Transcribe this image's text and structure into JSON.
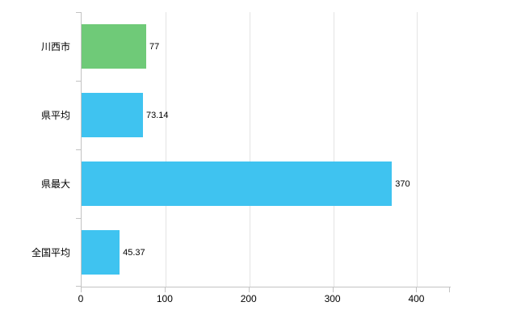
{
  "chart_data": {
    "type": "bar",
    "orientation": "horizontal",
    "title": "",
    "categories": [
      "川西市",
      "県平均",
      "県最大",
      "全国平均"
    ],
    "values": [
      77,
      73.14,
      370,
      45.37
    ],
    "value_labels": [
      "77",
      "73.14",
      "370",
      "45.37"
    ],
    "bar_colors": [
      "#6fca78",
      "#3fc3f0",
      "#3fc3f0",
      "#3fc3f0"
    ],
    "x_ticks": [
      0,
      100,
      200,
      300,
      400
    ],
    "x_tick_labels": [
      "0",
      "100",
      "200",
      "300",
      "400"
    ],
    "xlim": [
      0,
      440
    ],
    "grid": true,
    "legend": false,
    "axis_color": "#c3c3c3",
    "grid_color": "#e4e4e4",
    "background_color": "#ffffff",
    "text_color": "#000000"
  }
}
